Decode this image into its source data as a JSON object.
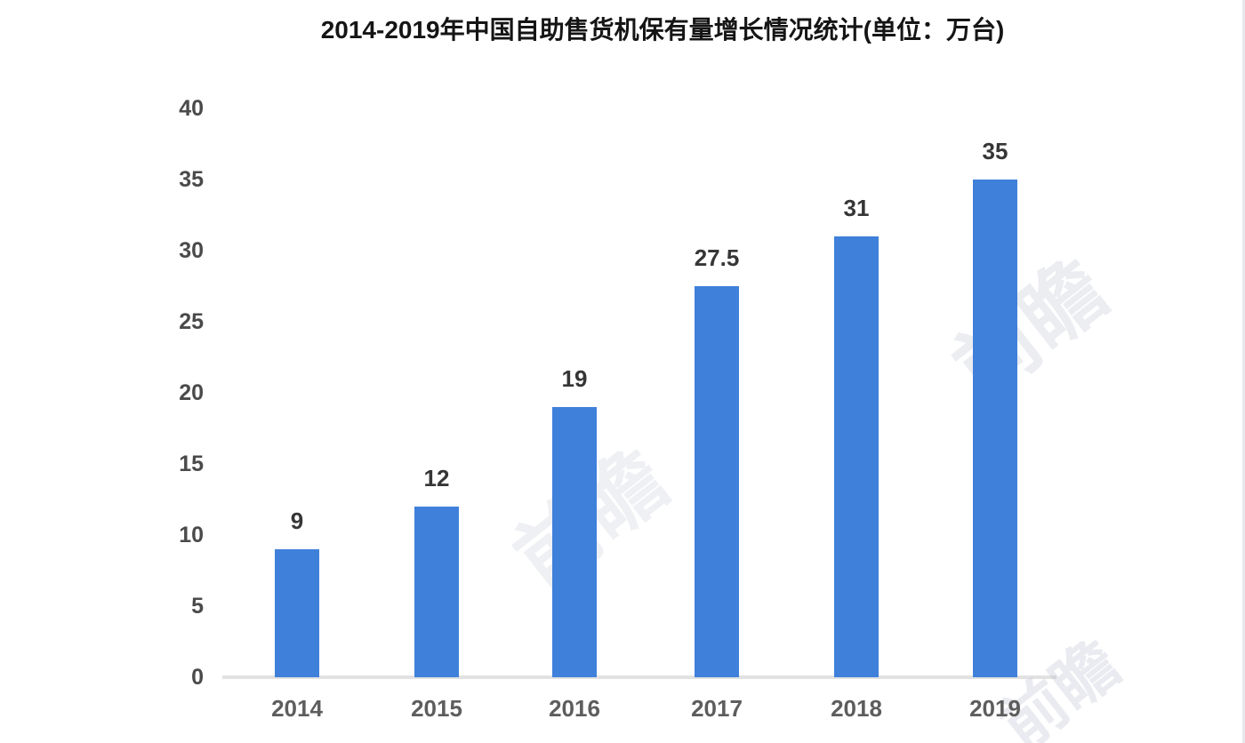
{
  "page": {
    "background": "#ffffff"
  },
  "chart_data": {
    "type": "bar",
    "title": "2014-2019年中国自助售货机保有量增长情况统计(单位：万台)",
    "categories": [
      "2014",
      "2015",
      "2016",
      "2017",
      "2018",
      "2019"
    ],
    "values": [
      9,
      12,
      19,
      27.5,
      31,
      35
    ],
    "value_labels": [
      "9",
      "12",
      "19",
      "27.5",
      "31",
      "35"
    ],
    "xlabel": "",
    "ylabel": "",
    "ylim": [
      0,
      40
    ],
    "yticks": [
      0,
      5,
      10,
      15,
      20,
      25,
      30,
      35,
      40
    ],
    "grid": "off",
    "legend": "none",
    "bar_color": "#3f80da",
    "axis_line_color": "#e2e2e2",
    "title_color": "#151515",
    "tick_label_color": "#4a4a4a",
    "value_label_color": "#363636"
  },
  "watermarks": [
    {
      "text": "前瞻"
    },
    {
      "text": "前瞻"
    },
    {
      "text": "前瞻"
    }
  ]
}
